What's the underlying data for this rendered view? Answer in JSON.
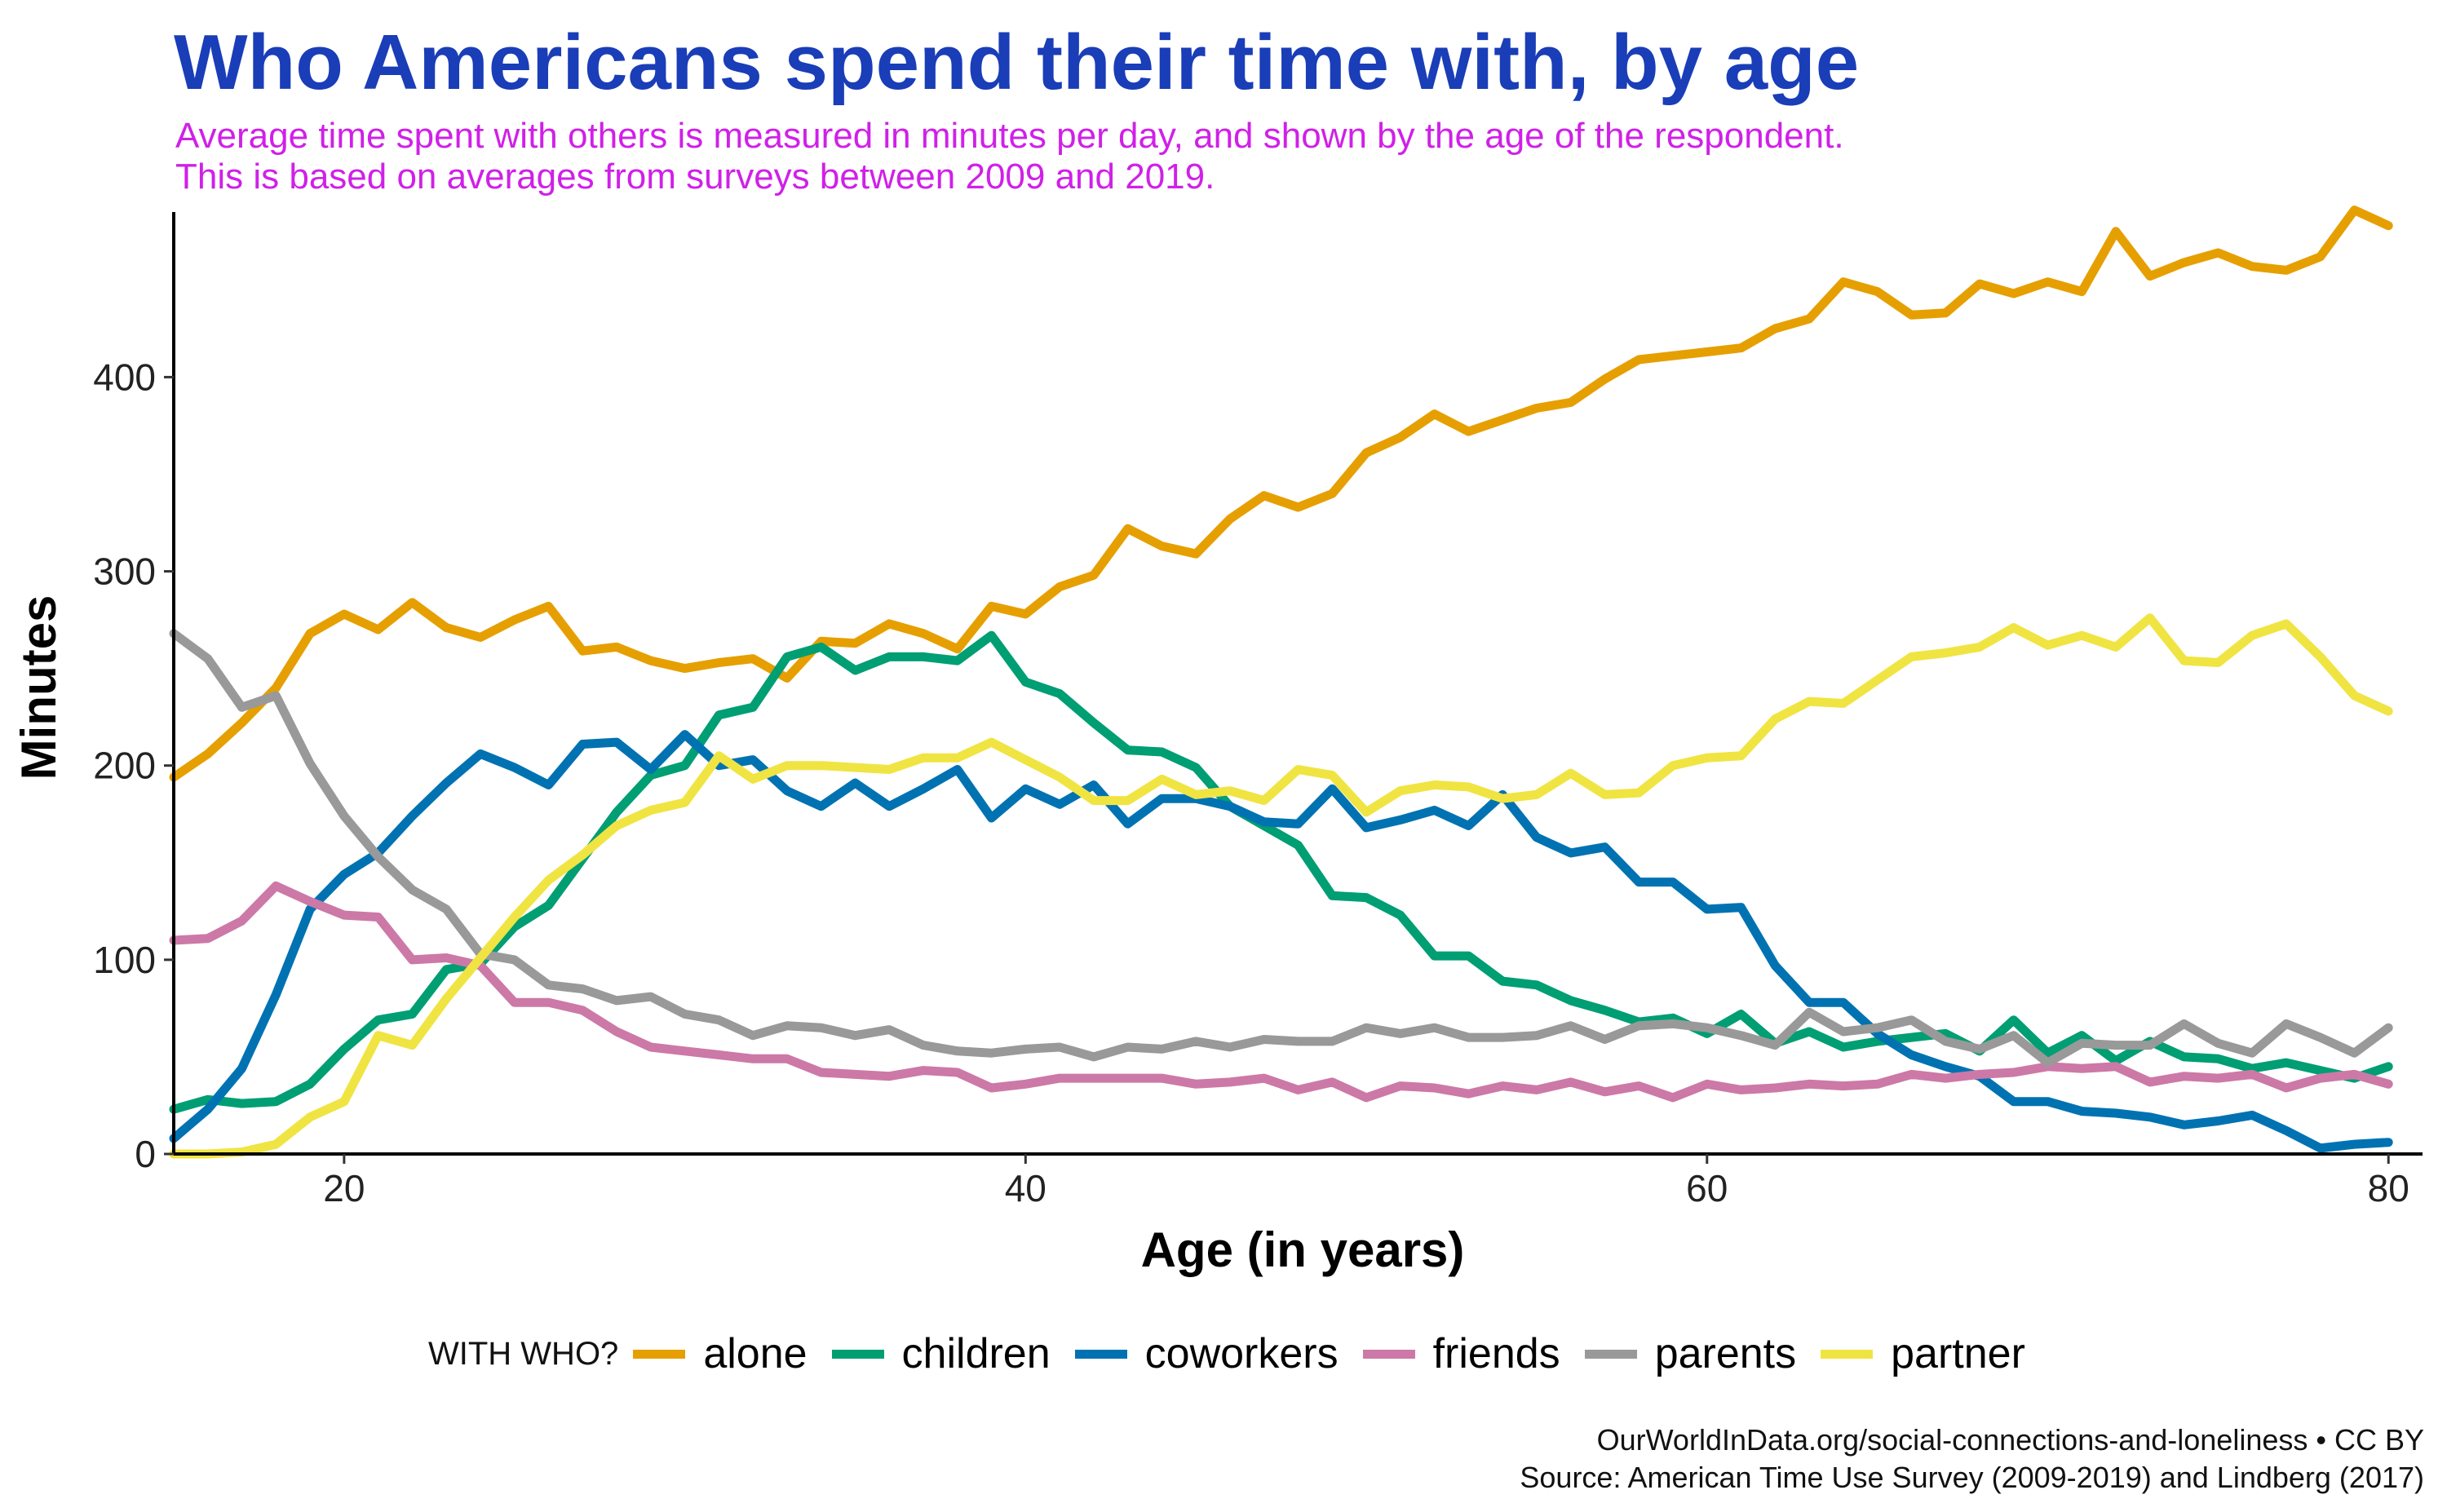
{
  "title": "Who Americans spend their time with, by age",
  "subtitle_line1": "Average time spent with others is measured in minutes per day, and shown by the age of the respondent.",
  "subtitle_line2": "This is based on averages from surveys between 2009 and 2019.",
  "legend_title": "WITH WHO?",
  "caption_line1": "OurWorldInData.org/social-connections-and-loneliness • CC BY",
  "caption_line2": "Source: American Time Use Survey (2009-2019) and Lindberg (2017)",
  "chart_data": {
    "type": "line",
    "xlabel": "Age (in years)",
    "ylabel": "Minutes",
    "xlim": [
      15,
      81
    ],
    "ylim": [
      0,
      485
    ],
    "xticks": [
      20,
      40,
      60,
      80
    ],
    "yticks": [
      0,
      100,
      200,
      300,
      400
    ],
    "grid": false,
    "legend_position": "bottom",
    "x": [
      15,
      16,
      17,
      18,
      19,
      20,
      21,
      22,
      23,
      24,
      25,
      26,
      27,
      28,
      29,
      30,
      31,
      32,
      33,
      34,
      35,
      36,
      37,
      38,
      39,
      40,
      41,
      42,
      43,
      44,
      45,
      46,
      47,
      48,
      49,
      50,
      51,
      52,
      53,
      54,
      55,
      56,
      57,
      58,
      59,
      60,
      61,
      62,
      63,
      64,
      65,
      66,
      67,
      68,
      69,
      70,
      71,
      72,
      73,
      74,
      75,
      76,
      77,
      78,
      79,
      80
    ],
    "series": [
      {
        "name": "alone",
        "color": "#e69f00",
        "values": [
          194,
          206,
          222,
          240,
          268,
          278,
          270,
          284,
          271,
          266,
          275,
          282,
          259,
          261,
          254,
          250,
          253,
          255,
          245,
          264,
          263,
          273,
          268,
          260,
          282,
          278,
          292,
          298,
          322,
          313,
          309,
          327,
          339,
          333,
          340,
          361,
          369,
          381,
          372,
          378,
          384,
          387,
          399,
          409,
          411,
          413,
          415,
          425,
          430,
          449,
          444,
          432,
          433,
          448,
          443,
          449,
          444,
          475,
          452,
          459,
          464,
          457,
          455,
          462,
          486,
          478
        ]
      },
      {
        "name": "children",
        "color": "#009e73",
        "values": [
          23,
          28,
          26,
          27,
          36,
          54,
          69,
          72,
          95,
          98,
          117,
          128,
          152,
          176,
          195,
          200,
          226,
          230,
          256,
          261,
          249,
          256,
          256,
          254,
          267,
          243,
          237,
          222,
          208,
          207,
          199,
          179,
          169,
          159,
          133,
          132,
          123,
          102,
          102,
          89,
          87,
          79,
          74,
          68,
          70,
          62,
          72,
          57,
          63,
          55,
          58,
          60,
          62,
          53,
          69,
          52,
          61,
          48,
          58,
          50,
          49,
          44,
          47,
          43,
          39,
          45
        ]
      },
      {
        "name": "coworkers",
        "color": "#0072b2",
        "values": [
          8,
          23,
          44,
          82,
          126,
          144,
          155,
          174,
          191,
          206,
          199,
          190,
          211,
          212,
          198,
          216,
          200,
          203,
          187,
          179,
          191,
          179,
          188,
          198,
          173,
          188,
          180,
          190,
          170,
          183,
          183,
          179,
          171,
          170,
          188,
          168,
          172,
          177,
          169,
          185,
          163,
          155,
          158,
          140,
          140,
          126,
          127,
          97,
          78,
          78,
          62,
          51,
          45,
          40,
          27,
          27,
          22,
          21,
          19,
          15,
          17,
          20,
          12,
          3,
          5,
          6
        ]
      },
      {
        "name": "friends",
        "color": "#cc79a7",
        "values": [
          110,
          111,
          120,
          138,
          130,
          123,
          122,
          100,
          101,
          97,
          78,
          78,
          74,
          63,
          55,
          53,
          51,
          49,
          49,
          42,
          41,
          40,
          43,
          42,
          34,
          36,
          39,
          39,
          39,
          39,
          36,
          37,
          39,
          33,
          37,
          29,
          35,
          34,
          31,
          35,
          33,
          37,
          32,
          35,
          29,
          36,
          33,
          34,
          36,
          35,
          36,
          41,
          39,
          41,
          42,
          45,
          44,
          45,
          37,
          40,
          39,
          41,
          34,
          39,
          41,
          36
        ]
      },
      {
        "name": "parents",
        "color": "#999999",
        "values": [
          268,
          255,
          230,
          236,
          201,
          174,
          153,
          136,
          126,
          103,
          100,
          87,
          85,
          79,
          81,
          72,
          69,
          61,
          66,
          65,
          61,
          64,
          56,
          53,
          52,
          54,
          55,
          50,
          55,
          54,
          58,
          55,
          59,
          58,
          58,
          65,
          62,
          65,
          60,
          60,
          61,
          66,
          59,
          66,
          67,
          65,
          61,
          56,
          73,
          63,
          65,
          69,
          58,
          54,
          61,
          47,
          57,
          56,
          56,
          67,
          57,
          52,
          67,
          60,
          52,
          65
        ]
      },
      {
        "name": "partner",
        "color": "#f0e442",
        "values": [
          0,
          0,
          1,
          5,
          19,
          27,
          61,
          56,
          80,
          101,
          122,
          141,
          154,
          169,
          177,
          181,
          205,
          193,
          200,
          200,
          199,
          198,
          204,
          204,
          212,
          203,
          194,
          182,
          182,
          193,
          185,
          187,
          182,
          198,
          195,
          176,
          187,
          190,
          189,
          183,
          185,
          196,
          185,
          186,
          200,
          204,
          205,
          224,
          233,
          232,
          244,
          256,
          258,
          261,
          271,
          262,
          267,
          261,
          276,
          254,
          253,
          267,
          273,
          256,
          236,
          228
        ]
      }
    ]
  }
}
